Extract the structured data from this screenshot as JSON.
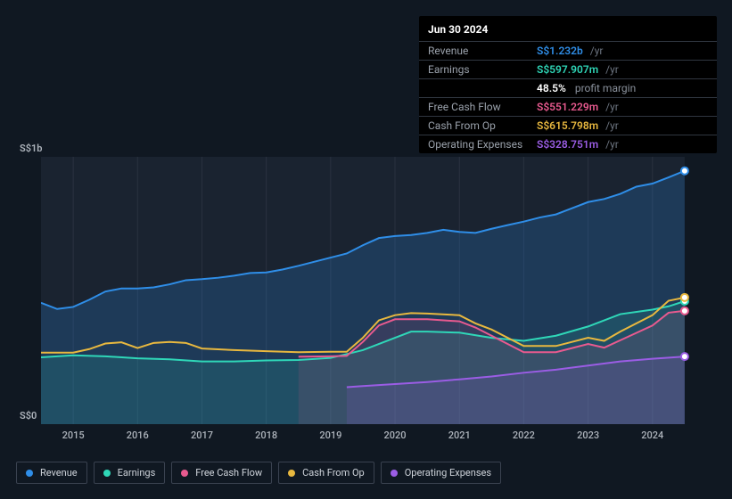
{
  "chart": {
    "type": "area",
    "background_color": "#101822",
    "grid_color": "#2a3240",
    "plot_band_color": "#1a2330",
    "label_fontsize": 11,
    "y": {
      "min": 0,
      "max": 1300,
      "labels": [
        {
          "v": 0,
          "text": "S$0"
        },
        {
          "v": 1000,
          "text": "S$1b"
        }
      ]
    },
    "x": {
      "min": 2014.5,
      "max": 2025.0,
      "ticks": [
        2015,
        2016,
        2017,
        2018,
        2019,
        2020,
        2021,
        2022,
        2023,
        2024
      ]
    },
    "cursor_x": 2024.5,
    "series": [
      {
        "key": "revenue",
        "name": "Revenue",
        "color": "#2f8ee8",
        "fill_opacity": 0.22,
        "line_width": 2,
        "points": [
          [
            2014.5,
            590
          ],
          [
            2014.75,
            560
          ],
          [
            2015.0,
            570
          ],
          [
            2015.25,
            605
          ],
          [
            2015.5,
            645
          ],
          [
            2015.75,
            660
          ],
          [
            2016.0,
            660
          ],
          [
            2016.25,
            665
          ],
          [
            2016.5,
            680
          ],
          [
            2016.75,
            700
          ],
          [
            2017.0,
            705
          ],
          [
            2017.25,
            712
          ],
          [
            2017.5,
            722
          ],
          [
            2017.75,
            735
          ],
          [
            2018.0,
            738
          ],
          [
            2018.25,
            752
          ],
          [
            2018.5,
            770
          ],
          [
            2018.75,
            790
          ],
          [
            2019.0,
            810
          ],
          [
            2019.25,
            830
          ],
          [
            2019.5,
            870
          ],
          [
            2019.75,
            905
          ],
          [
            2020.0,
            915
          ],
          [
            2020.25,
            920
          ],
          [
            2020.5,
            930
          ],
          [
            2020.75,
            945
          ],
          [
            2021.0,
            935
          ],
          [
            2021.25,
            930
          ],
          [
            2021.5,
            950
          ],
          [
            2021.75,
            968
          ],
          [
            2022.0,
            985
          ],
          [
            2022.25,
            1005
          ],
          [
            2022.5,
            1020
          ],
          [
            2022.75,
            1050
          ],
          [
            2023.0,
            1080
          ],
          [
            2023.25,
            1095
          ],
          [
            2023.5,
            1120
          ],
          [
            2023.75,
            1155
          ],
          [
            2024.0,
            1170
          ],
          [
            2024.25,
            1200
          ],
          [
            2024.5,
            1232
          ]
        ]
      },
      {
        "key": "earnings",
        "name": "Earnings",
        "color": "#2fd7b8",
        "fill_opacity": 0.14,
        "line_width": 2,
        "points": [
          [
            2014.5,
            325
          ],
          [
            2015.0,
            335
          ],
          [
            2015.5,
            330
          ],
          [
            2016.0,
            320
          ],
          [
            2016.5,
            315
          ],
          [
            2017.0,
            305
          ],
          [
            2017.5,
            305
          ],
          [
            2018.0,
            310
          ],
          [
            2018.5,
            312
          ],
          [
            2019.0,
            322
          ],
          [
            2019.5,
            360
          ],
          [
            2020.0,
            420
          ],
          [
            2020.25,
            450
          ],
          [
            2020.5,
            450
          ],
          [
            2021.0,
            445
          ],
          [
            2021.5,
            420
          ],
          [
            2022.0,
            405
          ],
          [
            2022.5,
            430
          ],
          [
            2023.0,
            475
          ],
          [
            2023.5,
            535
          ],
          [
            2024.0,
            557
          ],
          [
            2024.25,
            573
          ],
          [
            2024.5,
            598
          ]
        ]
      },
      {
        "key": "fcf",
        "name": "Free Cash Flow",
        "color": "#e85a8f",
        "fill_opacity": 0.12,
        "line_width": 2,
        "points": [
          [
            2018.5,
            328
          ],
          [
            2019.0,
            330
          ],
          [
            2019.25,
            332
          ],
          [
            2019.5,
            400
          ],
          [
            2019.75,
            480
          ],
          [
            2020.0,
            510
          ],
          [
            2020.5,
            510
          ],
          [
            2021.0,
            500
          ],
          [
            2021.25,
            470
          ],
          [
            2021.5,
            430
          ],
          [
            2022.0,
            350
          ],
          [
            2022.5,
            350
          ],
          [
            2023.0,
            390
          ],
          [
            2023.25,
            372
          ],
          [
            2023.5,
            408
          ],
          [
            2024.0,
            480
          ],
          [
            2024.25,
            542
          ],
          [
            2024.5,
            551
          ]
        ]
      },
      {
        "key": "cfop",
        "name": "Cash From Op",
        "color": "#e8b83f",
        "fill_opacity": 0.0,
        "line_width": 2,
        "points": [
          [
            2014.5,
            348
          ],
          [
            2015.0,
            348
          ],
          [
            2015.25,
            365
          ],
          [
            2015.5,
            392
          ],
          [
            2015.75,
            398
          ],
          [
            2016.0,
            370
          ],
          [
            2016.25,
            395
          ],
          [
            2016.5,
            400
          ],
          [
            2016.75,
            395
          ],
          [
            2017.0,
            368
          ],
          [
            2017.5,
            360
          ],
          [
            2018.0,
            355
          ],
          [
            2018.5,
            350
          ],
          [
            2019.0,
            352
          ],
          [
            2019.25,
            352
          ],
          [
            2019.5,
            420
          ],
          [
            2019.75,
            505
          ],
          [
            2020.0,
            530
          ],
          [
            2020.25,
            540
          ],
          [
            2020.5,
            538
          ],
          [
            2021.0,
            530
          ],
          [
            2021.25,
            490
          ],
          [
            2021.5,
            460
          ],
          [
            2022.0,
            380
          ],
          [
            2022.5,
            380
          ],
          [
            2023.0,
            420
          ],
          [
            2023.25,
            405
          ],
          [
            2023.5,
            450
          ],
          [
            2024.0,
            530
          ],
          [
            2024.25,
            600
          ],
          [
            2024.5,
            616
          ]
        ]
      },
      {
        "key": "opex",
        "name": "Operating Expenses",
        "color": "#9b5de5",
        "fill_opacity": 0.14,
        "line_width": 2,
        "points": [
          [
            2019.25,
            180
          ],
          [
            2019.5,
            185
          ],
          [
            2020.0,
            195
          ],
          [
            2020.5,
            205
          ],
          [
            2021.0,
            218
          ],
          [
            2021.5,
            232
          ],
          [
            2022.0,
            250
          ],
          [
            2022.5,
            265
          ],
          [
            2023.0,
            285
          ],
          [
            2023.5,
            305
          ],
          [
            2024.0,
            318
          ],
          [
            2024.5,
            328.8
          ]
        ]
      }
    ]
  },
  "tooltip": {
    "date": "Jun 30 2024",
    "rows": [
      {
        "label": "Revenue",
        "value": "S$1.232b",
        "unit": "/yr",
        "color": "#2f8ee8"
      },
      {
        "label": "Earnings",
        "value": "S$597.907m",
        "unit": "/yr",
        "color": "#2fd7b8",
        "margin_pct": "48.5%",
        "margin_txt": "profit margin"
      },
      {
        "label": "Free Cash Flow",
        "value": "S$551.229m",
        "unit": "/yr",
        "color": "#e85a8f"
      },
      {
        "label": "Cash From Op",
        "value": "S$615.798m",
        "unit": "/yr",
        "color": "#e8b83f"
      },
      {
        "label": "Operating Expenses",
        "value": "S$328.751m",
        "unit": "/yr",
        "color": "#9b5de5"
      }
    ]
  },
  "legend": [
    {
      "key": "revenue",
      "label": "Revenue",
      "color": "#2f8ee8"
    },
    {
      "key": "earnings",
      "label": "Earnings",
      "color": "#2fd7b8"
    },
    {
      "key": "fcf",
      "label": "Free Cash Flow",
      "color": "#e85a8f"
    },
    {
      "key": "cfop",
      "label": "Cash From Op",
      "color": "#e8b83f"
    },
    {
      "key": "opex",
      "label": "Operating Expenses",
      "color": "#9b5de5"
    }
  ]
}
